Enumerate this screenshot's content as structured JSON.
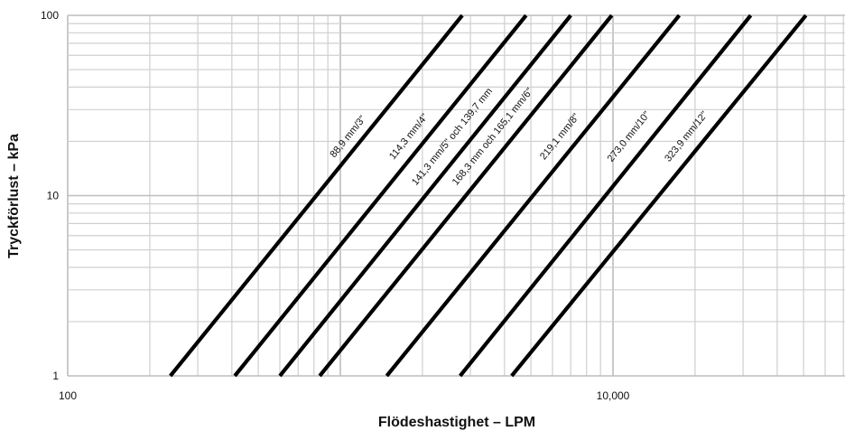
{
  "chart_data": {
    "type": "line",
    "title": "",
    "xlabel": "Flödeshastighet – LPM",
    "ylabel": "Tryckförlust – kPa",
    "x_scale": "log",
    "y_scale": "log",
    "xlim": [
      100,
      100000
    ],
    "ylim": [
      1,
      100
    ],
    "grid": true,
    "x_tick_labels": [
      {
        "value": 100,
        "label": "100"
      },
      {
        "value": 10000,
        "label": "10,000"
      }
    ],
    "y_tick_labels": [
      {
        "value": 1,
        "label": "1"
      },
      {
        "value": 10,
        "label": "10"
      },
      {
        "value": 100,
        "label": "100"
      }
    ],
    "series": [
      {
        "name": "88,9 mm/3\"",
        "x": [
          238,
          2800
        ],
        "y": [
          1,
          100
        ],
        "label_at": [
          1120,
          20
        ]
      },
      {
        "name": "114,3 mm/4\"",
        "x": [
          410,
          4800
        ],
        "y": [
          1,
          100
        ],
        "label_at": [
          1870,
          20
        ]
      },
      {
        "name": "141,3 mm/5\" och 139,7 mm",
        "x": [
          600,
          7000
        ],
        "y": [
          1,
          100
        ],
        "label_at": [
          2700,
          20
        ]
      },
      {
        "name": "168,3 mm och 165,1 mm/6\"",
        "x": [
          840,
          9900
        ],
        "y": [
          1,
          100
        ],
        "label_at": [
          3800,
          20
        ]
      },
      {
        "name": "219,1 mm/8\"",
        "x": [
          1480,
          17500
        ],
        "y": [
          1,
          100
        ],
        "label_at": [
          6700,
          20
        ]
      },
      {
        "name": "273,0 mm/10\"",
        "x": [
          2750,
          32000
        ],
        "y": [
          1,
          100
        ],
        "label_at": [
          12000,
          20
        ]
      },
      {
        "name": "323,9 mm/12\"",
        "x": [
          4250,
          51000
        ],
        "y": [
          1,
          100
        ],
        "label_at": [
          19500,
          20
        ]
      }
    ]
  }
}
